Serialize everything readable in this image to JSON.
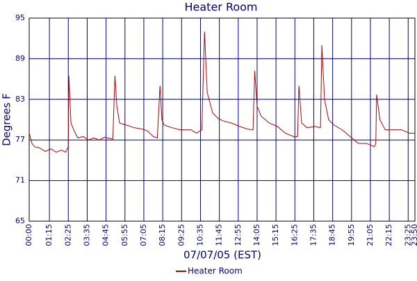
{
  "chart_data": {
    "type": "line",
    "title": "Heater Room",
    "x_label": "07/07/05 (EST)",
    "y_label": "Degrees F",
    "x": [
      0,
      10,
      20,
      40,
      60,
      80,
      100,
      120,
      135,
      145,
      147,
      155,
      165,
      180,
      200,
      220,
      240,
      260,
      280,
      300,
      310,
      318,
      325,
      335,
      360,
      390,
      420,
      440,
      460,
      475,
      485,
      492,
      500,
      530,
      560,
      600,
      620,
      640,
      650,
      660,
      680,
      700,
      720,
      750,
      780,
      810,
      830,
      836,
      845,
      860,
      890,
      920,
      950,
      980,
      995,
      1000,
      1010,
      1030,
      1060,
      1080,
      1085,
      1095,
      1110,
      1130,
      1160,
      1190,
      1220,
      1250,
      1280,
      1285,
      1288,
      1300,
      1320,
      1350,
      1380,
      1410,
      1430
    ],
    "series": [
      {
        "name": "Heater Room",
        "color": "#b00000",
        "values": [
          78,
          76.5,
          76,
          75.8,
          75.3,
          75.7,
          75.2,
          75.5,
          75.2,
          76,
          86.5,
          79.5,
          78.5,
          77.3,
          77.5,
          77,
          77.3,
          77,
          77.4,
          77.2,
          77.1,
          86.5,
          82,
          79.5,
          79.2,
          78.8,
          78.6,
          78.3,
          77.5,
          77.3,
          85,
          80,
          79.2,
          78.8,
          78.5,
          78.5,
          78,
          78.5,
          93,
          84,
          81,
          80.2,
          79.8,
          79.5,
          79,
          78.6,
          78.5,
          87.2,
          82,
          80.5,
          79.5,
          79,
          78,
          77.5,
          77.5,
          85,
          79.5,
          78.8,
          79,
          78.8,
          91,
          83,
          80,
          79.2,
          78.5,
          77.5,
          76.5,
          76.5,
          76,
          76.5,
          83.7,
          80,
          78.5,
          78.5,
          78.5,
          78,
          78
        ]
      }
    ],
    "xlim": [
      0,
      1430
    ],
    "ylim": [
      65,
      95
    ],
    "xticks": [
      {
        "value": 0,
        "label": "00:00"
      },
      {
        "value": 75,
        "label": "01:15"
      },
      {
        "value": 145,
        "label": "02:25"
      },
      {
        "value": 215,
        "label": "03:35"
      },
      {
        "value": 285,
        "label": "04:45"
      },
      {
        "value": 355,
        "label": "05:55"
      },
      {
        "value": 425,
        "label": "07:05"
      },
      {
        "value": 495,
        "label": "08:15"
      },
      {
        "value": 565,
        "label": "09:25"
      },
      {
        "value": 635,
        "label": "10:35"
      },
      {
        "value": 705,
        "label": "11:45"
      },
      {
        "value": 775,
        "label": "12:55"
      },
      {
        "value": 845,
        "label": "14:05"
      },
      {
        "value": 915,
        "label": "15:15"
      },
      {
        "value": 985,
        "label": "16:25"
      },
      {
        "value": 1055,
        "label": "17:35"
      },
      {
        "value": 1125,
        "label": "18:45"
      },
      {
        "value": 1195,
        "label": "19:55"
      },
      {
        "value": 1265,
        "label": "21:05"
      },
      {
        "value": 1335,
        "label": "22:15"
      },
      {
        "value": 1405,
        "label": "23:25"
      },
      {
        "value": 1430,
        "label": "23:50"
      }
    ],
    "yticks": [
      65,
      71,
      77,
      83,
      89,
      95
    ],
    "grid": true
  }
}
